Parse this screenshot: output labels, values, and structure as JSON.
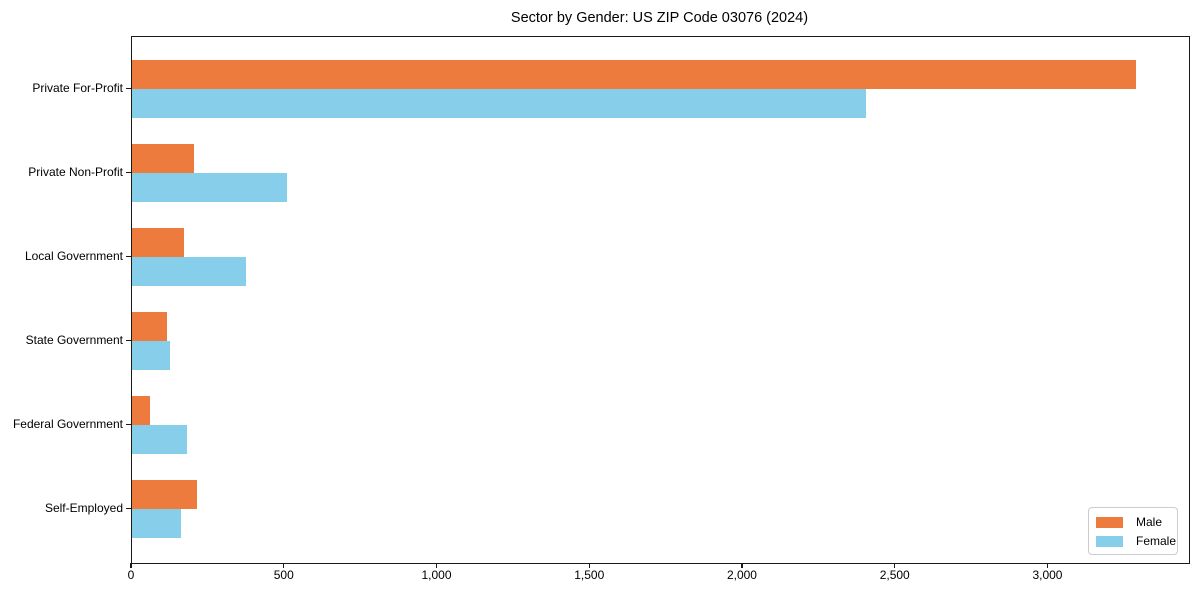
{
  "chart_data": {
    "type": "bar",
    "orientation": "horizontal",
    "title": "Sector by Gender: US ZIP Code 03076 (2024)",
    "categories": [
      "Private For-Profit",
      "Private Non-Profit",
      "Local Government",
      "State Government",
      "Federal Government",
      "Self-Employed"
    ],
    "series": [
      {
        "name": "Male",
        "color": "#EC7B3D",
        "values": [
          3287,
          204,
          171,
          114,
          58,
          211
        ]
      },
      {
        "name": "Female",
        "color": "#87CEEB",
        "values": [
          2402,
          507,
          374,
          123,
          180,
          160
        ]
      }
    ],
    "xlabel": "",
    "ylabel": "",
    "xlim": [
      0,
      3460
    ],
    "xticks": {
      "values": [
        0,
        500,
        1000,
        1500,
        2000,
        2500,
        3000
      ],
      "labels": [
        "0",
        "500",
        "1,000",
        "1,500",
        "2,000",
        "2,500",
        "3,000"
      ]
    },
    "grid": false,
    "legend": {
      "position": "lower right"
    }
  }
}
